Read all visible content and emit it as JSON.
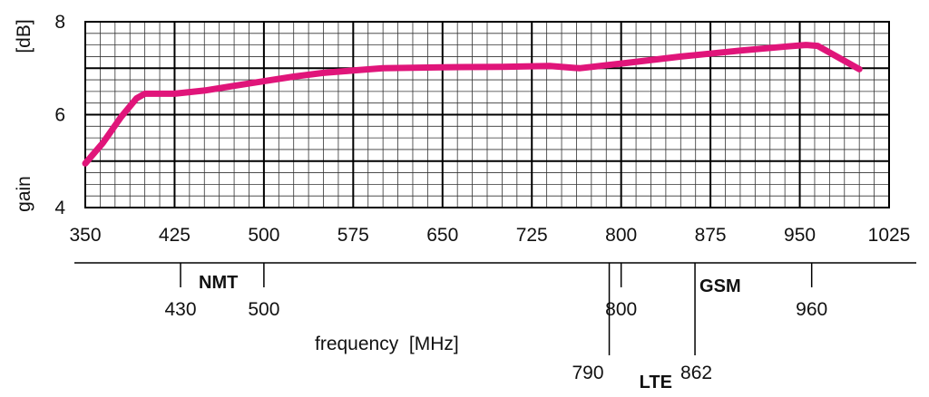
{
  "chart_data": {
    "type": "line",
    "ylabel": "gain",
    "yunit": "[dB]",
    "xlabel": "frequency  [MHz]",
    "xlim": [
      350,
      1025
    ],
    "ylim": [
      4,
      8
    ],
    "grid": true,
    "x_ticks": [
      "350",
      "425",
      "500",
      "575",
      "650",
      "725",
      "800",
      "875",
      "950",
      "1025"
    ],
    "y_ticks": [
      "4",
      "6",
      "8"
    ],
    "line_color": "#e0157a",
    "series": [
      {
        "x": [
          350,
          365,
          380,
          393,
          400,
          425,
          450,
          475,
          500,
          525,
          550,
          575,
          600,
          650,
          700,
          740,
          765,
          800,
          850,
          900,
          940,
          955,
          965,
          1000
        ],
        "y": [
          4.95,
          5.4,
          5.95,
          6.35,
          6.45,
          6.45,
          6.52,
          6.62,
          6.72,
          6.82,
          6.9,
          6.95,
          7.0,
          7.02,
          7.03,
          7.05,
          7.0,
          7.1,
          7.25,
          7.38,
          7.47,
          7.5,
          7.48,
          6.98
        ]
      }
    ],
    "bands": [
      {
        "label": "NMT",
        "low": 430,
        "high": 500,
        "row": "upper"
      },
      {
        "label": "GSM",
        "low": 862,
        "high": 960,
        "row": "upper"
      },
      {
        "label": "LTE",
        "low": 790,
        "high": 862,
        "row": "lower"
      }
    ],
    "band_tick_labels": [
      {
        "value": 430,
        "label": "430",
        "row": "upper"
      },
      {
        "value": 500,
        "label": "500",
        "row": "upper"
      },
      {
        "value": 800,
        "label": "800",
        "row": "upper"
      },
      {
        "value": 960,
        "label": "960",
        "row": "upper"
      },
      {
        "value": 790,
        "label": "790",
        "row": "lower"
      },
      {
        "value": 862,
        "label": "862",
        "row": "lower"
      }
    ]
  }
}
